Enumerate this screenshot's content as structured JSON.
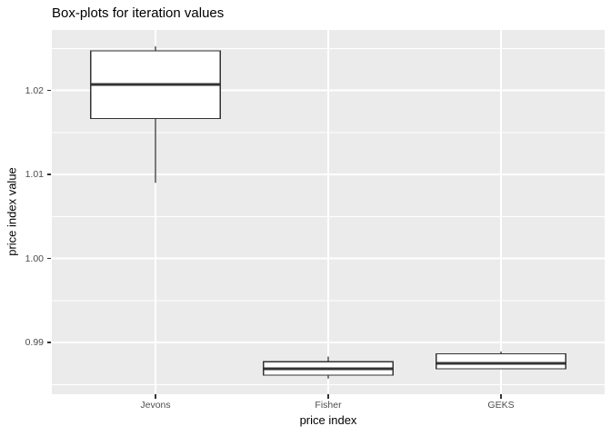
{
  "chart_data": {
    "type": "boxplot",
    "title": "Box-plots for iteration values",
    "xlabel": "price index",
    "ylabel": "price index value",
    "categories": [
      "Jevons",
      "Fisher",
      "GEKS"
    ],
    "series": [
      {
        "name": "Jevons",
        "min": 1.009,
        "q1": 1.01665,
        "median": 1.0207,
        "q3": 1.0247,
        "max": 1.02524
      },
      {
        "name": "Fisher",
        "min": 0.9857,
        "q1": 0.9861,
        "median": 0.98686,
        "q3": 0.98769,
        "max": 0.98832
      },
      {
        "name": "GEKS",
        "min": 0.98686,
        "q1": 0.98686,
        "median": 0.98751,
        "q3": 0.98865,
        "max": 0.98892
      }
    ],
    "ylim": [
      0.98384,
      1.02719
    ],
    "y_major_ticks": [
      0.99,
      1.0,
      1.01,
      1.02
    ],
    "y_tick_labels": [
      "0.99",
      "1.00",
      "1.01",
      "1.02"
    ],
    "y_minor_ticks": [
      0.985,
      0.995,
      1.005,
      1.015,
      1.025
    ],
    "grid": true,
    "legend": false,
    "box_width_ratio": 0.75
  },
  "style": {
    "panel_bg": "#EBEBEB",
    "grid_color": "#FFFFFF",
    "box_stroke": "#333333",
    "box_fill": "#FFFFFF",
    "tick_color": "#333333",
    "tick_label_color": "#4D4D4D",
    "title_color": "#000000"
  }
}
